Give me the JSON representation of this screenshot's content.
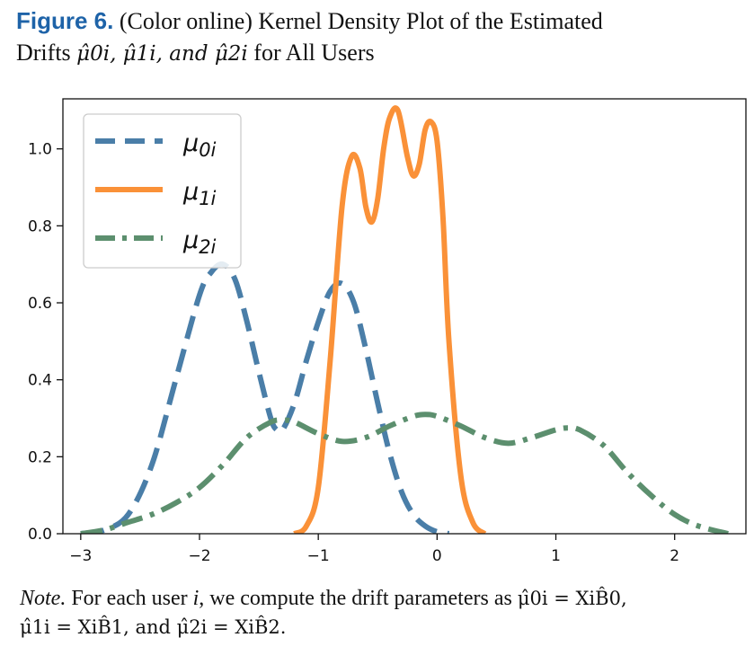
{
  "caption": {
    "fig_label": "Figure 6.",
    "line1_text": "(Color online) Kernel Density Plot of the Estimated",
    "line2_prefix": "Drifts",
    "line2_math": "μ̂0i, μ̂1i, and μ̂2i",
    "line2_suffix": "for All Users"
  },
  "note": {
    "note_label": "Note.",
    "text_a": "For each user",
    "text_b": ", we compute the drift parameters as",
    "math_a": "μ̂0i = XiB̂0,",
    "math_b": "μ̂1i = XiB̂1, and μ̂2i = XiB̂2."
  },
  "chart_data": {
    "type": "line",
    "xlim": [
      -3.15,
      2.6
    ],
    "ylim": [
      0.0,
      1.13
    ],
    "x_ticks": [
      -3,
      -2,
      -1,
      0,
      1,
      2
    ],
    "x_tick_labels": [
      "−3",
      "−2",
      "−1",
      "0",
      "1",
      "2"
    ],
    "y_ticks": [
      0.0,
      0.2,
      0.4,
      0.6,
      0.8,
      1.0
    ],
    "y_tick_labels": [
      "0.0",
      "0.2",
      "0.4",
      "0.6",
      "0.8",
      "1.0"
    ],
    "grid": false,
    "legend_position": "top-left",
    "series": [
      {
        "name": "μ0i",
        "color": "#4a7ea8",
        "style": "dashed",
        "x": [
          -3.0,
          -2.8,
          -2.6,
          -2.4,
          -2.2,
          -2.0,
          -1.9,
          -1.8,
          -1.7,
          -1.6,
          -1.5,
          -1.4,
          -1.35,
          -1.3,
          -1.2,
          -1.1,
          -1.0,
          -0.9,
          -0.8,
          -0.7,
          -0.6,
          -0.5,
          -0.4,
          -0.3,
          -0.2,
          -0.1,
          0.0,
          0.1
        ],
        "y": [
          0.0,
          0.01,
          0.05,
          0.18,
          0.4,
          0.62,
          0.68,
          0.7,
          0.66,
          0.55,
          0.42,
          0.3,
          0.27,
          0.27,
          0.34,
          0.45,
          0.55,
          0.63,
          0.65,
          0.6,
          0.48,
          0.34,
          0.21,
          0.11,
          0.05,
          0.02,
          0.005,
          0.0
        ]
      },
      {
        "name": "μ1i",
        "color": "#fa9138",
        "style": "solid",
        "x": [
          -1.2,
          -1.1,
          -1.0,
          -0.9,
          -0.8,
          -0.72,
          -0.65,
          -0.6,
          -0.55,
          -0.5,
          -0.45,
          -0.4,
          -0.33,
          -0.25,
          -0.2,
          -0.15,
          -0.1,
          -0.05,
          0.0,
          0.05,
          0.1,
          0.2,
          0.3,
          0.4
        ],
        "y": [
          0.0,
          0.02,
          0.12,
          0.45,
          0.85,
          0.98,
          0.95,
          0.85,
          0.81,
          0.87,
          1.0,
          1.08,
          1.1,
          0.98,
          0.93,
          0.96,
          1.05,
          1.07,
          1.02,
          0.82,
          0.5,
          0.15,
          0.03,
          0.0
        ]
      },
      {
        "name": "μ2i",
        "color": "#5c8f6e",
        "style": "dashdot",
        "x": [
          -3.0,
          -2.8,
          -2.6,
          -2.4,
          -2.2,
          -2.0,
          -1.8,
          -1.6,
          -1.4,
          -1.3,
          -1.2,
          -1.0,
          -0.8,
          -0.6,
          -0.4,
          -0.2,
          -0.1,
          0.0,
          0.2,
          0.4,
          0.6,
          0.8,
          1.0,
          1.1,
          1.2,
          1.4,
          1.6,
          1.8,
          2.0,
          2.2,
          2.45
        ],
        "y": [
          0.0,
          0.01,
          0.03,
          0.05,
          0.08,
          0.12,
          0.18,
          0.25,
          0.29,
          0.295,
          0.29,
          0.26,
          0.24,
          0.25,
          0.28,
          0.305,
          0.31,
          0.305,
          0.28,
          0.25,
          0.235,
          0.25,
          0.27,
          0.275,
          0.27,
          0.23,
          0.16,
          0.1,
          0.05,
          0.02,
          0.0
        ]
      }
    ]
  }
}
